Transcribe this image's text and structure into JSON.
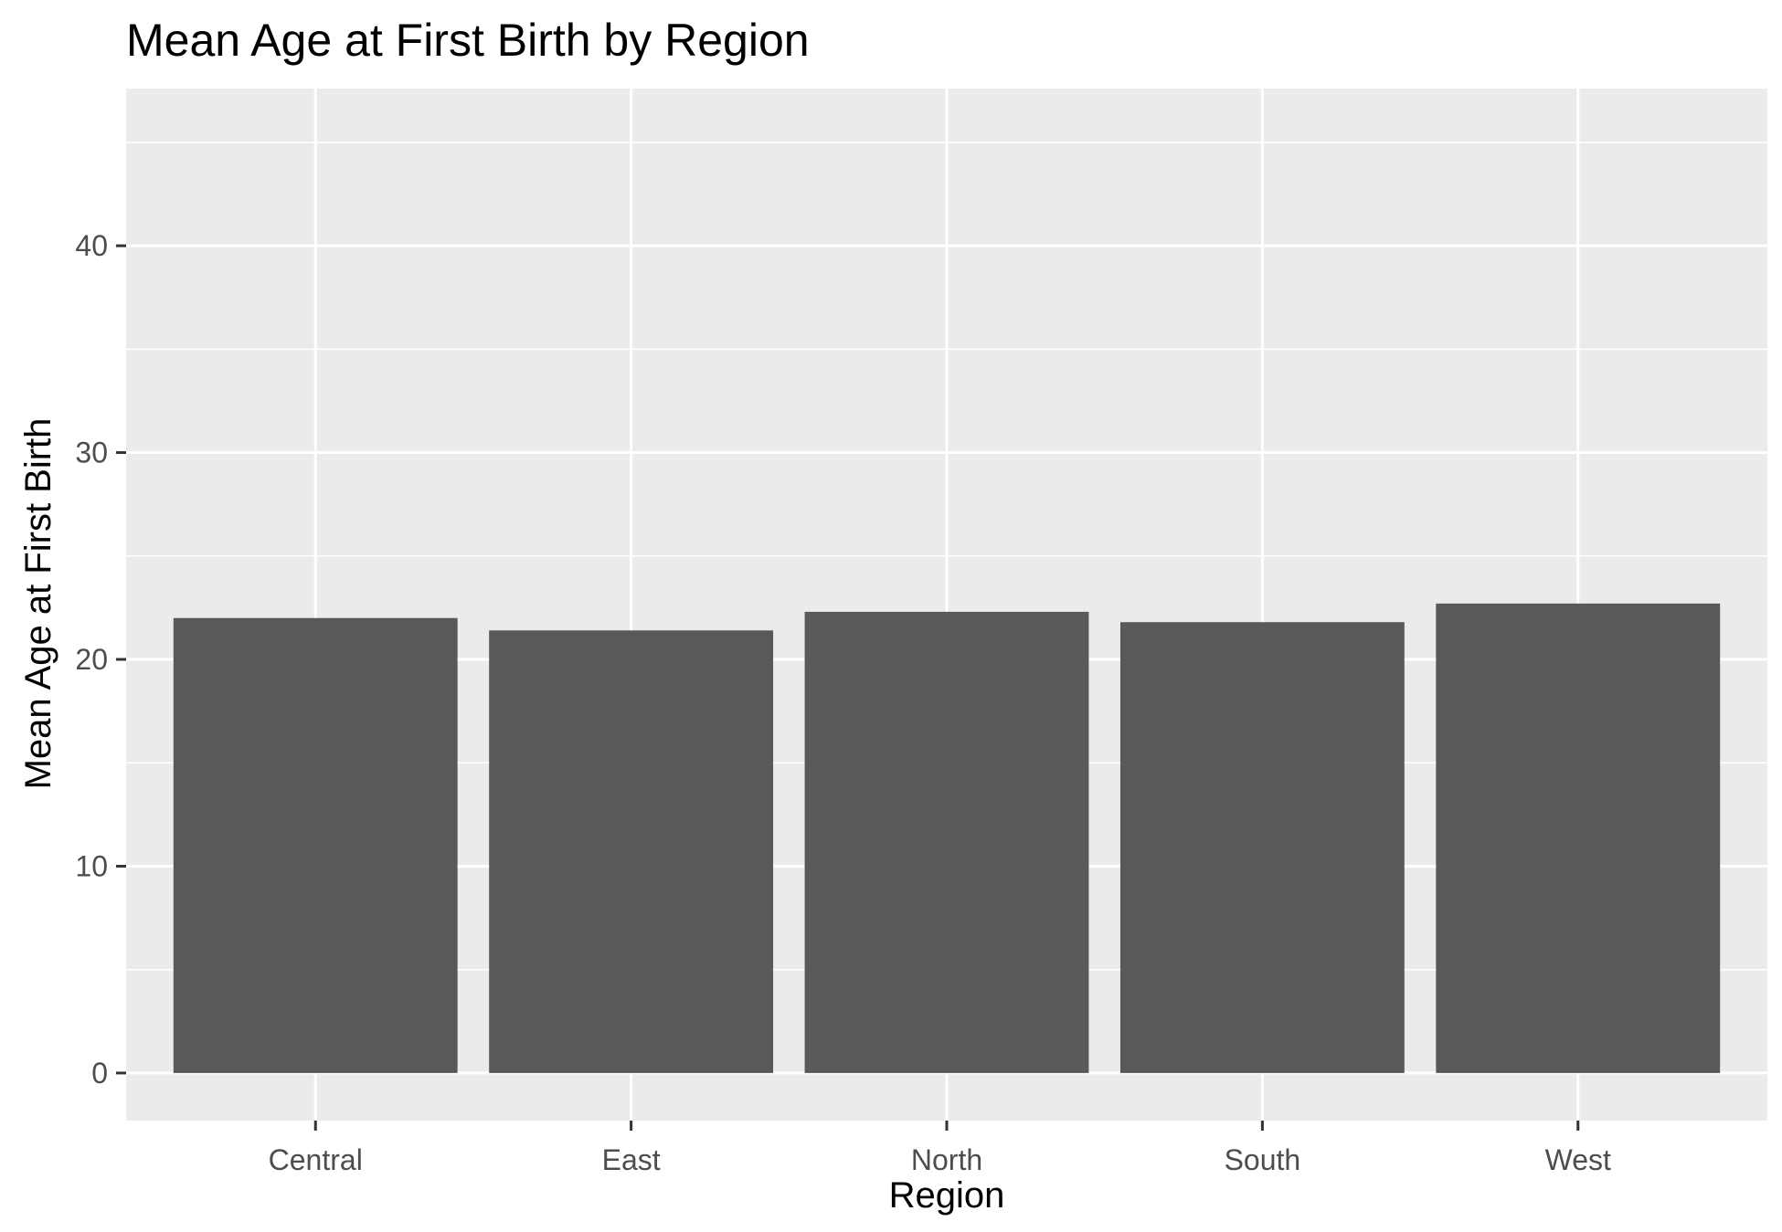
{
  "chart_data": {
    "type": "bar",
    "title": "Mean Age at First Birth by Region",
    "xlabel": "Region",
    "ylabel": "Mean Age at First Birth",
    "categories": [
      "Central",
      "East",
      "North",
      "South",
      "West"
    ],
    "values": [
      22.0,
      21.4,
      22.3,
      21.8,
      22.7
    ],
    "ylim": [
      -2.3,
      47.6
    ],
    "yticks": [
      0,
      10,
      20,
      30,
      40
    ],
    "ytick_labels": [
      "0",
      "10",
      "20",
      "30",
      "40"
    ],
    "grid": true,
    "legend": "none",
    "colors": {
      "bar": "#595959",
      "panel_background": "#ebebeb",
      "grid_major": "#ffffff",
      "grid_minor": "#ffffff",
      "tick_text": "#4d4d4d",
      "axis_ticks": "#333333"
    }
  }
}
